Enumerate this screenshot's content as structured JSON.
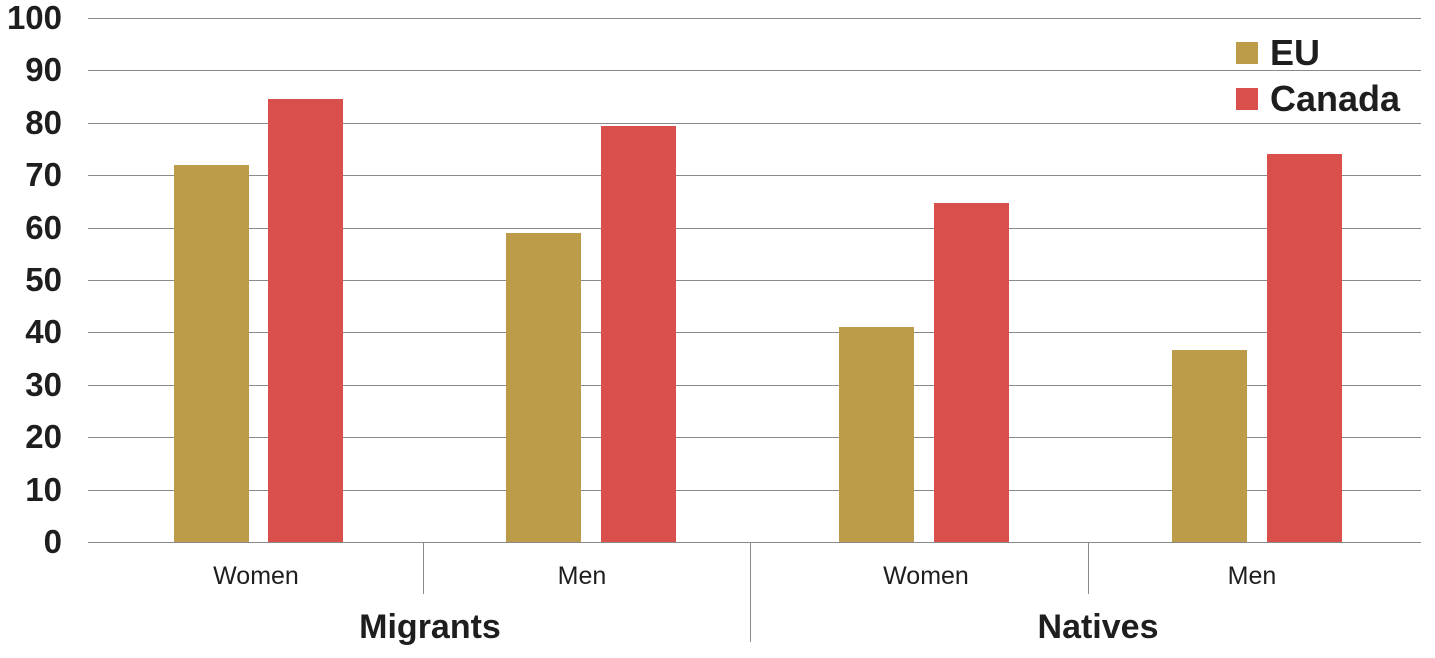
{
  "chart_data": {
    "type": "bar",
    "title": "",
    "xlabel": "",
    "ylabel": "",
    "ylim": [
      0,
      100
    ],
    "yticks": [
      0,
      10,
      20,
      30,
      40,
      50,
      60,
      70,
      80,
      90,
      100
    ],
    "groups": [
      "Migrants",
      "Natives"
    ],
    "categories": [
      "Women",
      "Men",
      "Women",
      "Men"
    ],
    "series": [
      {
        "name": "EU",
        "color": "#bc9c48",
        "values": [
          72,
          59,
          41,
          36.6
        ]
      },
      {
        "name": "Canada",
        "color": "#d94f4c",
        "values": [
          84.6,
          79.4,
          64.7,
          74
        ]
      }
    ],
    "legend_position": "top-right",
    "grid": true
  },
  "legend": {
    "eu": "EU",
    "canada": "Canada"
  },
  "x_labels": [
    "Women",
    "Men",
    "Women",
    "Men"
  ],
  "group_labels": [
    "Migrants",
    "Natives"
  ]
}
